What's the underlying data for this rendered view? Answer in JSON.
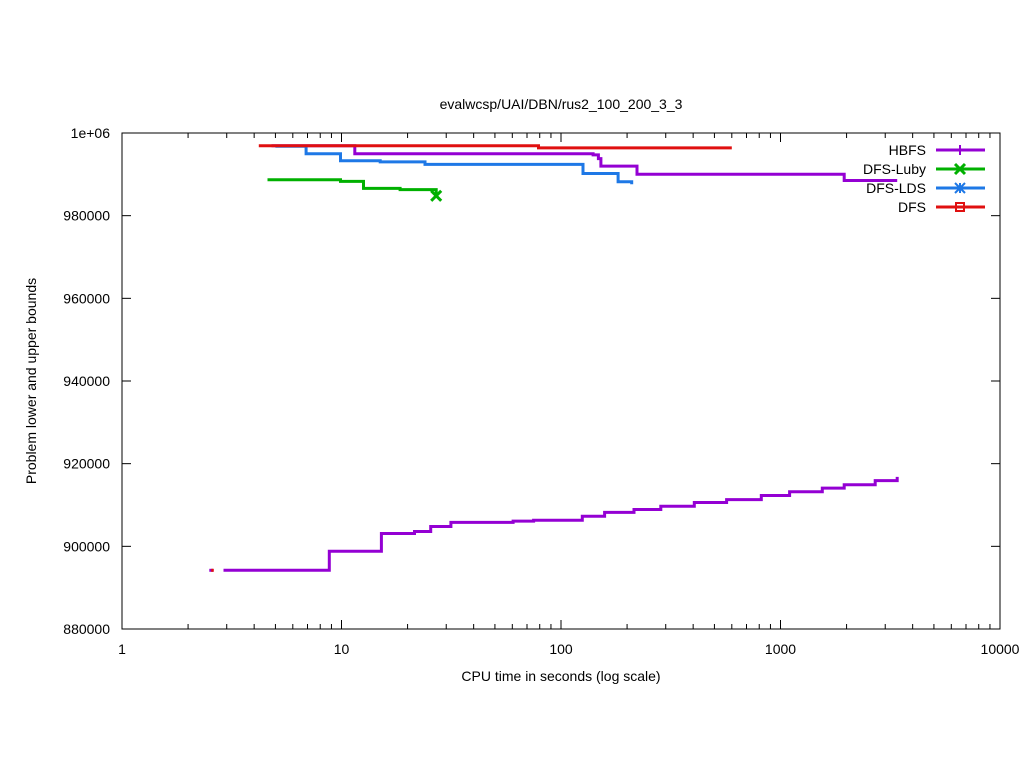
{
  "chart_data": {
    "type": "line",
    "title": "evalwcsp/UAI/DBN/rus2_100_200_3_3",
    "xlabel": "CPU time in seconds (log scale)",
    "ylabel": "Problem lower and upper bounds",
    "xscale": "log",
    "xlim": [
      1,
      10000
    ],
    "ylim": [
      880000,
      1000000
    ],
    "x_ticks": [
      1,
      10,
      100,
      1000,
      10000
    ],
    "x_tick_labels": [
      "1",
      "10",
      "100",
      "1000",
      "10000"
    ],
    "y_ticks": [
      880000,
      900000,
      920000,
      940000,
      960000,
      980000,
      1000000
    ],
    "y_tick_labels": [
      "880000",
      "900000",
      "920000",
      "940000",
      "960000",
      "980000",
      "1e+06"
    ],
    "grid": false,
    "legend_position": "top-right",
    "series": [
      {
        "name": "HBFS",
        "color": "#9400d3",
        "marker": "plus",
        "lines": [
          [
            [
              4.8,
              996900
            ],
            [
              11.5,
              996900
            ],
            [
              11.5,
              995000
            ],
            [
              140,
              995000
            ],
            [
              140,
              994700
            ],
            [
              148,
              994700
            ],
            [
              148,
              993800
            ],
            [
              152,
              993800
            ],
            [
              152,
              992000
            ],
            [
              222,
              992000
            ],
            [
              222,
              990000
            ],
            [
              1950,
              990000
            ],
            [
              1950,
              988500
            ],
            [
              3400,
              988500
            ]
          ],
          [
            [
              2.5,
              894200
            ],
            [
              2.6,
              894200
            ]
          ],
          [
            [
              2.9,
              894200
            ],
            [
              8.8,
              894200
            ],
            [
              8.8,
              898800
            ],
            [
              15.2,
              898800
            ],
            [
              15.2,
              903100
            ],
            [
              21.5,
              903100
            ],
            [
              21.5,
              903600
            ],
            [
              25.5,
              903600
            ],
            [
              25.5,
              904800
            ],
            [
              31.5,
              904800
            ],
            [
              31.5,
              905800
            ],
            [
              60.5,
              905800
            ],
            [
              60.5,
              906100
            ],
            [
              75,
              906100
            ],
            [
              75,
              906300
            ],
            [
              125,
              906300
            ],
            [
              125,
              907300
            ],
            [
              158,
              907300
            ],
            [
              158,
              908200
            ],
            [
              215,
              908200
            ],
            [
              215,
              908900
            ],
            [
              285,
              908900
            ],
            [
              285,
              909700
            ],
            [
              405,
              909700
            ],
            [
              405,
              910600
            ],
            [
              568,
              910600
            ],
            [
              568,
              911300
            ],
            [
              818,
              911300
            ],
            [
              818,
              912300
            ],
            [
              1100,
              912300
            ],
            [
              1100,
              913200
            ],
            [
              1550,
              913200
            ],
            [
              1550,
              914100
            ],
            [
              1950,
              914100
            ],
            [
              1950,
              914900
            ],
            [
              2700,
              914900
            ],
            [
              2700,
              915900
            ],
            [
              3400,
              915900
            ],
            [
              3400,
              916800
            ]
          ]
        ]
      },
      {
        "name": "DFS-Luby",
        "color": "#00b000",
        "marker": "x",
        "lines": [
          [
            [
              4.6,
              988700
            ],
            [
              9.9,
              988700
            ],
            [
              9.9,
              988300
            ],
            [
              12.6,
              988300
            ],
            [
              12.6,
              986600
            ],
            [
              18.5,
              986600
            ],
            [
              18.5,
              986300
            ],
            [
              27,
              986300
            ],
            [
              27,
              985000
            ]
          ]
        ],
        "end_point": [
          27,
          984800
        ]
      },
      {
        "name": "DFS-LDS",
        "color": "#1e78e6",
        "marker": "star",
        "lines": [
          [
            [
              5.0,
              996800
            ],
            [
              6.9,
              996800
            ],
            [
              6.9,
              995000
            ],
            [
              9.9,
              995000
            ],
            [
              9.9,
              993300
            ],
            [
              15.0,
              993300
            ],
            [
              15.0,
              993000
            ],
            [
              24.0,
              993000
            ],
            [
              24.0,
              992400
            ],
            [
              126,
              992400
            ],
            [
              126,
              990200
            ],
            [
              182,
              990200
            ],
            [
              182,
              988200
            ],
            [
              210,
              988200
            ],
            [
              210,
              987600
            ]
          ]
        ]
      },
      {
        "name": "DFS",
        "color": "#e01010",
        "marker": "square",
        "lines": [
          [
            [
              4.2,
              996900
            ],
            [
              79,
              996900
            ],
            [
              79,
              996400
            ],
            [
              600,
              996400
            ]
          ],
          [
            [
              2.55,
              894200
            ],
            [
              2.62,
              894200
            ]
          ]
        ]
      }
    ]
  }
}
